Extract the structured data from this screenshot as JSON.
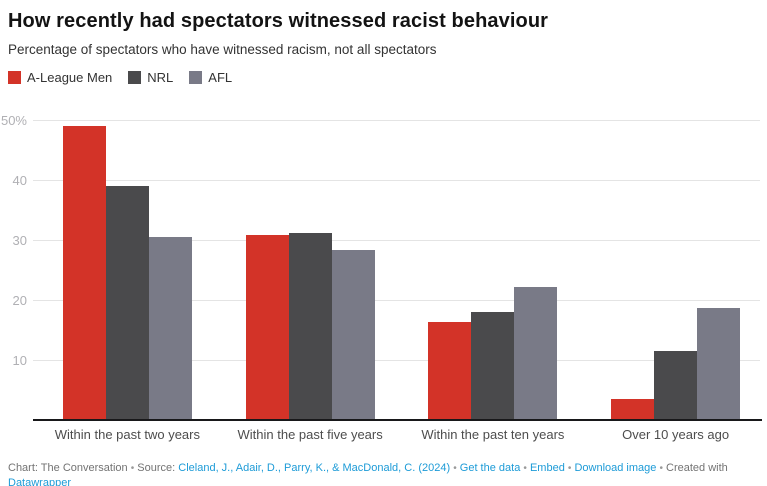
{
  "header": {
    "title": "How recently had spectators witnessed racist behaviour",
    "subtitle": "Percentage of spectators who have witnessed racism, not all spectators"
  },
  "chart_data": {
    "type": "bar",
    "title": "How recently had spectators witnessed racist behaviour",
    "subtitle": "Percentage of spectators who have witnessed racism, not all spectators",
    "categories": [
      "Within the past two years",
      "Within the past five years",
      "Within the past ten years",
      "Over 10 years ago"
    ],
    "series": [
      {
        "name": "A-League Men",
        "color": "#d33328",
        "values": [
          49,
          30.9,
          16.3,
          3.5
        ]
      },
      {
        "name": "NRL",
        "color": "#4a4a4c",
        "values": [
          39,
          31.2,
          18,
          11.5
        ]
      },
      {
        "name": "AFL",
        "color": "#797a87",
        "values": [
          30.5,
          28.4,
          22.2,
          18.7
        ]
      }
    ],
    "ylabel": "",
    "xlabel": "",
    "ylim": [
      0,
      51
    ],
    "yticks": [
      {
        "value": 10,
        "label": "10"
      },
      {
        "value": 20,
        "label": "20"
      },
      {
        "value": 30,
        "label": "30"
      },
      {
        "value": 40,
        "label": "40"
      },
      {
        "value": 50,
        "label": "50%"
      }
    ],
    "grid": true,
    "legend_position": "top-left",
    "unit_suffix": "%"
  },
  "footer": {
    "credit": "Chart: The Conversation",
    "source_label": "Source:",
    "source_link": "Cleland, J., Adair, D., Parry, K., & MacDonald, C. (2024)",
    "get_data_link": "Get the data",
    "embed_link": "Embed",
    "download_link": "Download image",
    "created_with": "Created with",
    "datawrapper_link": "Datawrapper",
    "sep": "•"
  }
}
